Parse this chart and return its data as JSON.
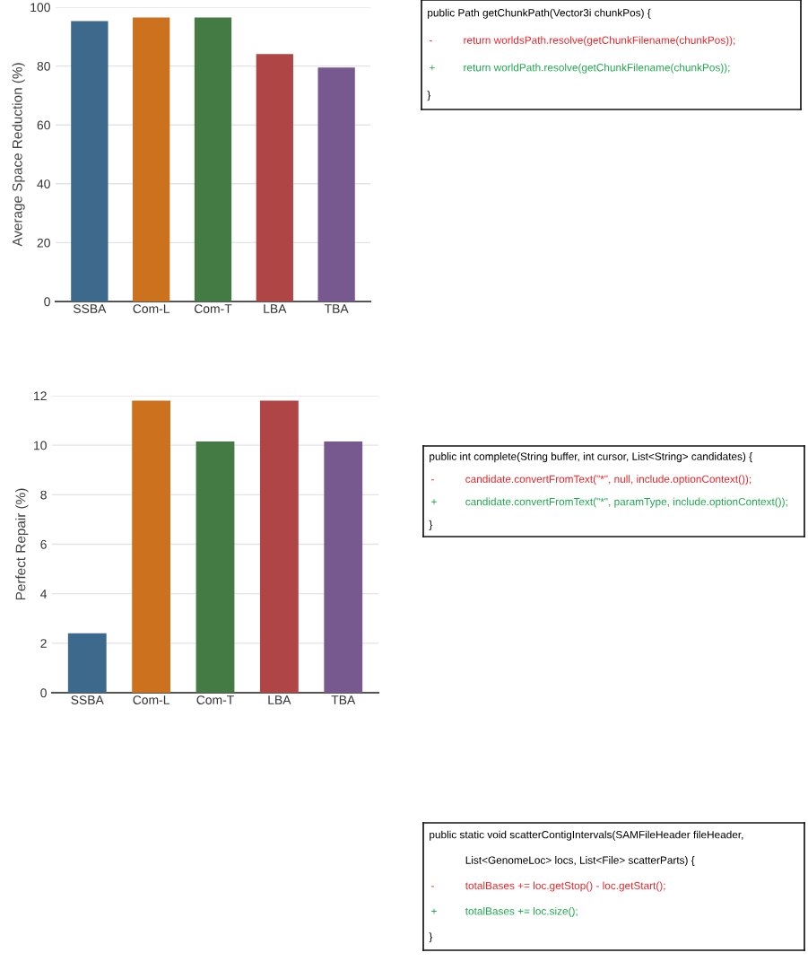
{
  "chart_data": [
    {
      "type": "bar",
      "ylabel": "Average Space Reduction (%)",
      "categories": [
        "SSBA",
        "Com-L",
        "Com-T",
        "LBA",
        "TBA"
      ],
      "values": [
        95.3,
        96.5,
        96.5,
        84.1,
        79.5
      ],
      "colors": [
        "#3d6a8c",
        "#cc711e",
        "#447a44",
        "#b04545",
        "#77598f"
      ],
      "ylim": [
        0,
        100
      ],
      "yticks": [
        0,
        20,
        40,
        60,
        80,
        100
      ],
      "grid": "y"
    },
    {
      "type": "other",
      "annotations": [
        "public Path getChunkPath(Vector3i chunkPos) {",
        "-\treturn worldsPath.resolve(getChunkFilename(chunkPos));",
        "+\treturn worldPath.resolve(getChunkFilename(chunkPos));",
        "}"
      ],
      "colors": [
        "#000000",
        "#e8262b",
        "#1fa84f",
        "#000000"
      ]
    },
    {
      "type": "bar",
      "ylabel": "Perfect Repair (%)",
      "categories": [
        "SSBA",
        "Com-L",
        "Com-T",
        "LBA",
        "TBA"
      ],
      "values": [
        2.4,
        11.8,
        10.15,
        11.8,
        10.15
      ],
      "colors": [
        "#3d6a8c",
        "#cc711e",
        "#447a44",
        "#b04545",
        "#77598f"
      ],
      "ylim": [
        0,
        12
      ],
      "yticks": [
        0,
        2,
        4,
        6,
        8,
        10,
        12
      ],
      "grid": "y"
    },
    {
      "type": "other",
      "annotations": [
        "public int complete(String buffer, int cursor, List<String> candidates) {",
        "-\tcandidate.convertFromText(\"*\", null, include.optionContext());",
        "+\tcandidate.convertFromText(\"*\", paramType, include.optionContext());",
        "}"
      ],
      "colors": [
        "#000000",
        "#e8262b",
        "#1fa84f",
        "#000000"
      ]
    },
    {
      "type": "other",
      "annotations": [
        "public static void scatterContigIntervals(SAMFileHeader fileHeader,",
        "\tList<GenomeLoc> locs, List<File> scatterParts) {",
        "-\ttotalBases += loc.getStop() - loc.getStart();",
        "+\ttotalBases += loc.size();",
        "}"
      ],
      "colors": [
        "#000000",
        "#000000",
        "#e8262b",
        "#1fa84f",
        "#000000"
      ]
    }
  ]
}
